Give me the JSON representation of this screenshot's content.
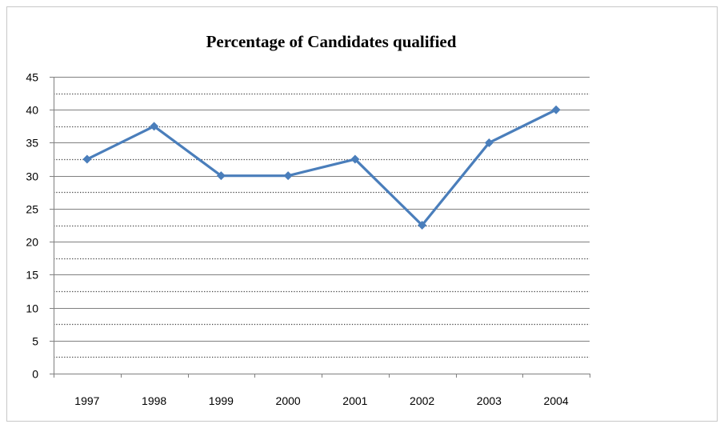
{
  "chart_data": {
    "type": "line",
    "title": "Percentage of Candidates qualified",
    "xlabel": "",
    "ylabel": "",
    "categories": [
      "1997",
      "1998",
      "1999",
      "2000",
      "2001",
      "2002",
      "2003",
      "2004"
    ],
    "series": [
      {
        "values": [
          32.5,
          37.5,
          30,
          30,
          32.5,
          22.5,
          35,
          40
        ]
      }
    ],
    "ylim": [
      0,
      45
    ],
    "yticks": [
      0,
      5,
      10,
      15,
      20,
      25,
      30,
      35,
      40,
      45
    ],
    "grid": "major solid, minor dotted",
    "legend": "none",
    "colors": {
      "line": "#4a7ebb",
      "marker": "#4a7ebb",
      "axis": "#808080",
      "grid": "#808080"
    }
  }
}
